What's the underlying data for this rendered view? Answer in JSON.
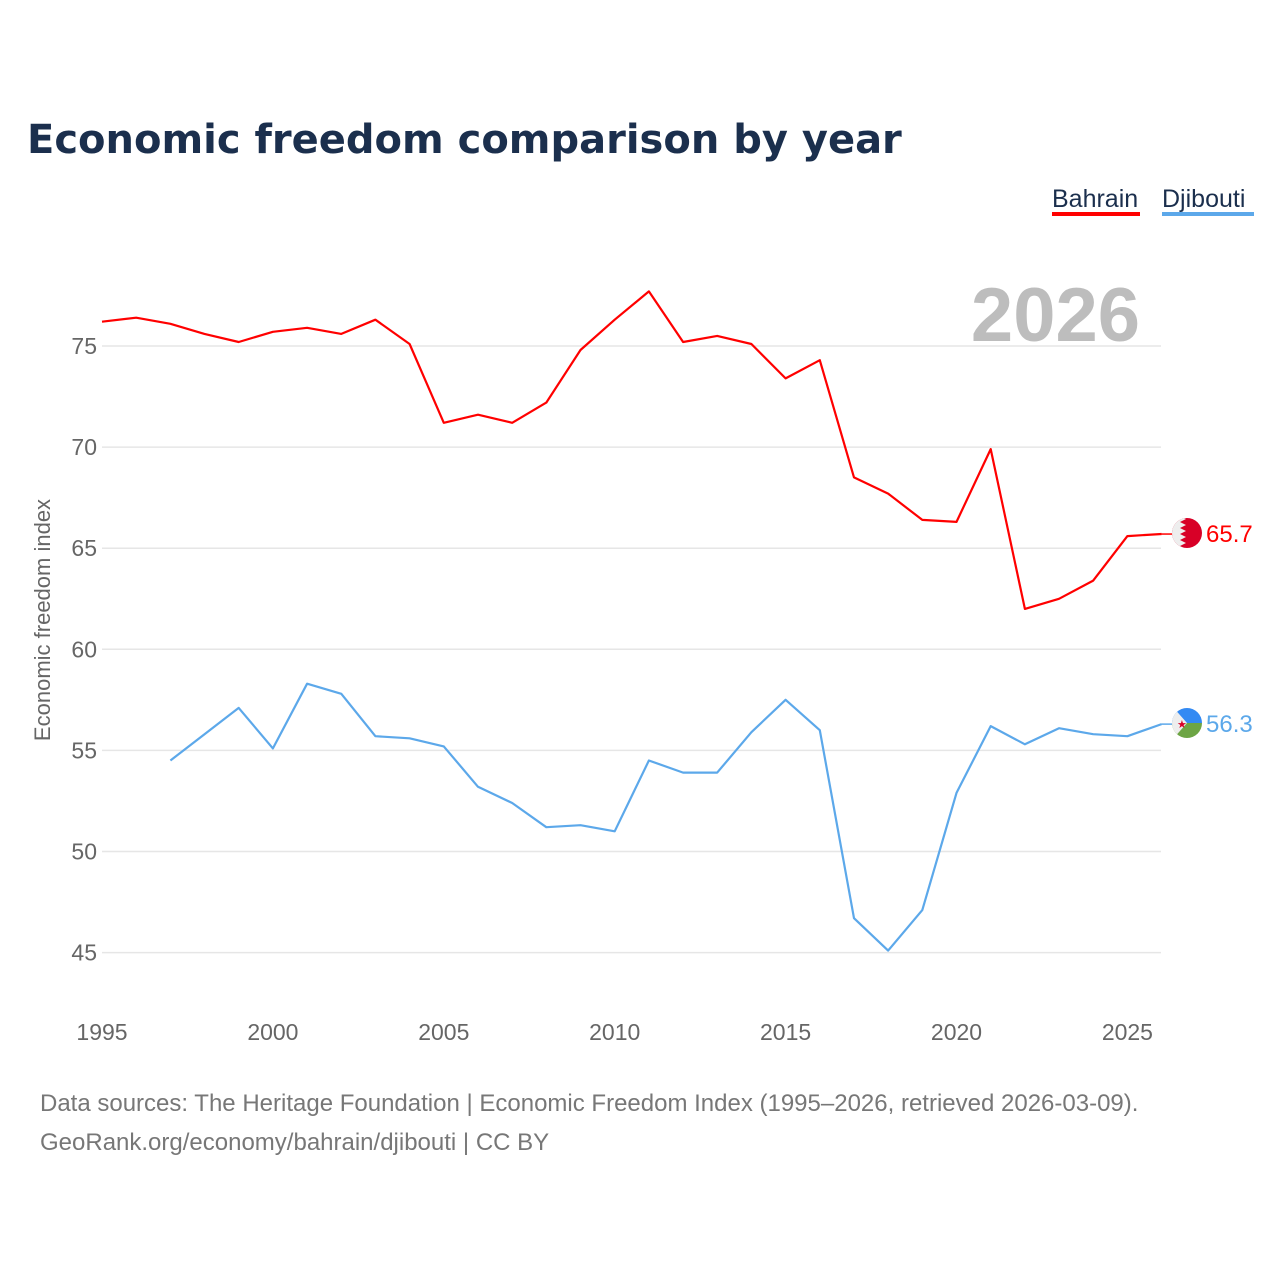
{
  "chart_data": {
    "type": "line",
    "title": "Economic freedom comparison by year",
    "xlabel": "",
    "ylabel": "Economic freedom index",
    "xlim": [
      1995,
      2026
    ],
    "ylim": [
      42,
      79
    ],
    "x_ticks": [
      1995,
      2000,
      2005,
      2010,
      2015,
      2020,
      2025
    ],
    "y_ticks": [
      45,
      50,
      55,
      60,
      65,
      70,
      75
    ],
    "grid": true,
    "legend_position": "top-right",
    "year_label": "2026",
    "series": [
      {
        "name": "Bahrain",
        "color": "#ff0000",
        "end_label": "65.7",
        "x": [
          1995,
          1996,
          1997,
          1998,
          1999,
          2000,
          2001,
          2002,
          2003,
          2004,
          2005,
          2006,
          2007,
          2008,
          2009,
          2010,
          2011,
          2012,
          2013,
          2014,
          2015,
          2016,
          2017,
          2018,
          2019,
          2020,
          2021,
          2022,
          2023,
          2024,
          2025,
          2026
        ],
        "values": [
          76.2,
          76.4,
          76.1,
          75.6,
          75.2,
          75.7,
          75.9,
          75.6,
          76.3,
          75.1,
          71.2,
          71.6,
          71.2,
          72.2,
          74.8,
          76.3,
          77.7,
          75.2,
          75.5,
          75.1,
          73.4,
          74.3,
          68.5,
          67.7,
          66.4,
          66.3,
          69.9,
          62.0,
          62.5,
          63.4,
          65.6,
          65.7
        ]
      },
      {
        "name": "Djibouti",
        "color": "#5ca8ea",
        "end_label": "56.3",
        "x": [
          1997,
          1998,
          1999,
          2000,
          2001,
          2002,
          2003,
          2004,
          2005,
          2006,
          2007,
          2008,
          2009,
          2010,
          2011,
          2012,
          2013,
          2014,
          2015,
          2016,
          2017,
          2018,
          2019,
          2020,
          2021,
          2022,
          2023,
          2024,
          2025,
          2026
        ],
        "values": [
          54.5,
          55.8,
          57.1,
          55.1,
          58.3,
          57.8,
          55.7,
          55.6,
          55.2,
          53.2,
          52.4,
          51.2,
          51.3,
          51.0,
          54.5,
          53.9,
          53.9,
          55.9,
          57.5,
          56.0,
          46.7,
          45.1,
          47.1,
          52.9,
          56.2,
          55.3,
          56.1,
          55.8,
          55.7,
          56.3
        ]
      }
    ]
  },
  "footer": {
    "line1": "Data sources: The Heritage Foundation | Economic Freedom Index (1995–2026, retrieved 2026-03-09).",
    "line2": "GeoRank.org/economy/bahrain/djibouti | CC BY"
  }
}
